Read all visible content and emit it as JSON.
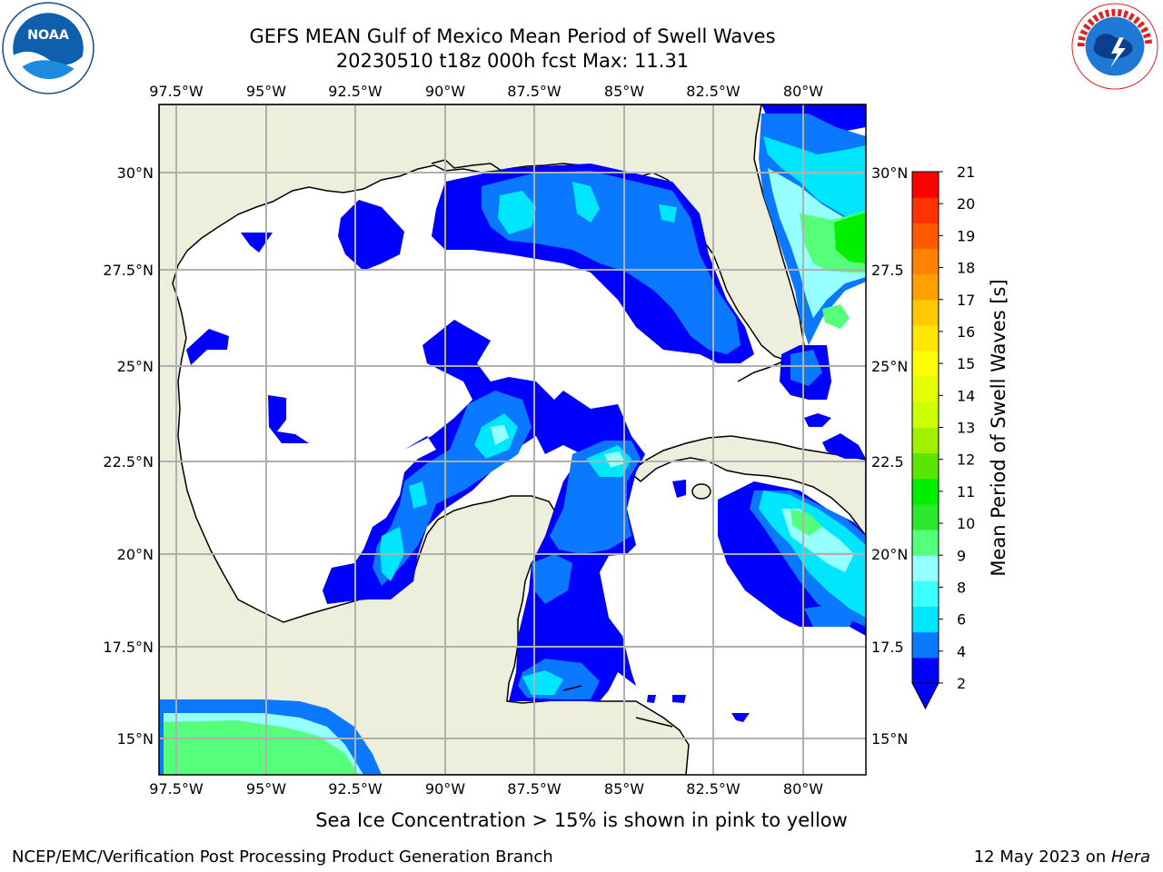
{
  "title_line1": "GEFS MEAN Gulf of Mexico Mean Period of Swell Waves",
  "title_line2": "20230510 t18z 000h fcst   Max: 11.31",
  "caption": "Sea Ice Concentration > 15% is shown in pink to yellow",
  "footer_left": "NCEP/EMC/Verification Post Processing Product Generation Branch",
  "footer_right_date": "12 May 2023 on ",
  "footer_right_host": "Hera",
  "logos": {
    "noaa_text": "NOAA",
    "noaa_ring_text": "NATIONAL OCEANIC AND ATMOSPHERIC ADMINISTRATION · U.S. DEPARTMENT OF COMMERCE",
    "nws_ring_text": "NATIONAL WEATHER SERVICE"
  },
  "map": {
    "lon_labels": [
      "97.5°W",
      "95°W",
      "92.5°W",
      "90°W",
      "87.5°W",
      "85°W",
      "82.5°W",
      "80°W"
    ],
    "lat_labels_left": [
      "30°N",
      "27.5°N",
      "25°N",
      "22.5°N",
      "20°N",
      "17.5°N",
      "15°N"
    ],
    "lat_labels_right": [
      "30°N",
      "27.5",
      "25°N",
      "22.5",
      "20°N",
      "17.5",
      "15°N"
    ],
    "land_color": "#eeeedc",
    "grid_color": "#b0b0b0"
  },
  "colorbar": {
    "label": "Mean Period of Swell Waves [s]",
    "ticks": [
      "2",
      "4",
      "6",
      "8",
      "9",
      "10",
      "11",
      "12",
      "13",
      "14",
      "15",
      "16",
      "17",
      "18",
      "19",
      "20",
      "21"
    ],
    "colors": [
      "#0000ff",
      "#0a78ff",
      "#00e6ff",
      "#3cffff",
      "#96ffff",
      "#55ff7a",
      "#2ce82c",
      "#00f000",
      "#5ae600",
      "#a0f000",
      "#ccff00",
      "#e6ff00",
      "#ffff00",
      "#ffe600",
      "#ffc800",
      "#ffa000",
      "#ff8200",
      "#ff5a00",
      "#ff3200",
      "#ff0000"
    ]
  },
  "chart_data": {
    "type": "heatmap",
    "title": "GEFS MEAN Gulf of Mexico Mean Period of Swell Waves",
    "subtitle": "20230510 t18z 000h fcst   Max: 11.31",
    "max_value": 11.31,
    "units": "s",
    "xlim": [
      -98,
      -79
    ],
    "ylim": [
      14,
      31.7
    ],
    "colorbar_range": [
      2,
      21
    ]
  }
}
